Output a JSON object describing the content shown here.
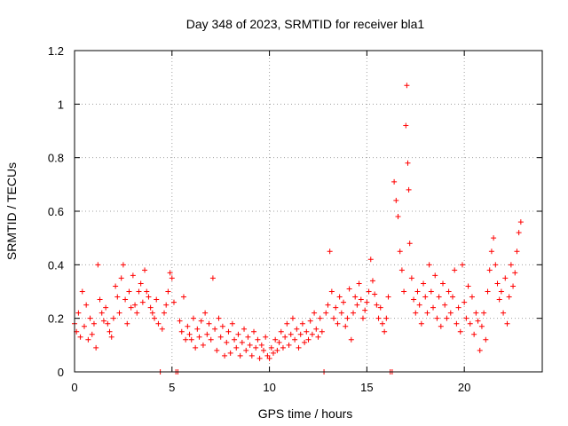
{
  "chart_data": {
    "type": "scatter",
    "title": "Day 348 of 2023, SRMTID for receiver bla1",
    "xlabel": "GPS time / hours",
    "ylabel": "SRMTID / TECUs",
    "xlim": [
      0,
      24
    ],
    "ylim": [
      0,
      1.2
    ],
    "x_ticks": [
      "0",
      "5",
      "10",
      "15",
      "20"
    ],
    "y_ticks": [
      "0",
      "0.2",
      "0.4",
      "0.6",
      "0.8",
      "1",
      "1.2"
    ],
    "grid": true,
    "marker": "plus",
    "color": "#ff0000",
    "series": [
      {
        "name": "SRMTID",
        "points": [
          [
            0.0,
            0.18
          ],
          [
            0.1,
            0.15
          ],
          [
            0.2,
            0.22
          ],
          [
            0.3,
            0.13
          ],
          [
            0.4,
            0.3
          ],
          [
            0.5,
            0.17
          ],
          [
            0.6,
            0.25
          ],
          [
            0.7,
            0.12
          ],
          [
            0.8,
            0.2
          ],
          [
            0.9,
            0.14
          ],
          [
            1.0,
            0.18
          ],
          [
            1.1,
            0.09
          ],
          [
            1.2,
            0.4
          ],
          [
            1.3,
            0.27
          ],
          [
            1.4,
            0.22
          ],
          [
            1.5,
            0.19
          ],
          [
            1.6,
            0.24
          ],
          [
            1.7,
            0.18
          ],
          [
            1.8,
            0.15
          ],
          [
            1.9,
            0.13
          ],
          [
            2.0,
            0.2
          ],
          [
            2.1,
            0.32
          ],
          [
            2.2,
            0.28
          ],
          [
            2.3,
            0.22
          ],
          [
            2.4,
            0.35
          ],
          [
            2.5,
            0.4
          ],
          [
            2.6,
            0.27
          ],
          [
            2.7,
            0.18
          ],
          [
            2.8,
            0.3
          ],
          [
            2.9,
            0.24
          ],
          [
            3.0,
            0.36
          ],
          [
            3.1,
            0.25
          ],
          [
            3.2,
            0.22
          ],
          [
            3.3,
            0.3
          ],
          [
            3.4,
            0.33
          ],
          [
            3.5,
            0.26
          ],
          [
            3.6,
            0.38
          ],
          [
            3.7,
            0.3
          ],
          [
            3.8,
            0.28
          ],
          [
            3.9,
            0.24
          ],
          [
            4.0,
            0.22
          ],
          [
            4.1,
            0.2
          ],
          [
            4.2,
            0.27
          ],
          [
            4.3,
            0.18
          ],
          [
            4.4,
            0.0
          ],
          [
            4.5,
            0.16
          ],
          [
            4.6,
            0.22
          ],
          [
            4.7,
            0.25
          ],
          [
            4.8,
            0.3
          ],
          [
            4.9,
            0.37
          ],
          [
            5.0,
            0.35
          ],
          [
            5.1,
            0.26
          ],
          [
            5.2,
            0.0
          ],
          [
            5.3,
            0.0
          ],
          [
            5.4,
            0.19
          ],
          [
            5.5,
            0.15
          ],
          [
            5.6,
            0.28
          ],
          [
            5.7,
            0.12
          ],
          [
            5.8,
            0.17
          ],
          [
            5.9,
            0.14
          ],
          [
            6.0,
            0.12
          ],
          [
            6.1,
            0.2
          ],
          [
            6.2,
            0.09
          ],
          [
            6.3,
            0.16
          ],
          [
            6.4,
            0.13
          ],
          [
            6.5,
            0.19
          ],
          [
            6.6,
            0.1
          ],
          [
            6.7,
            0.22
          ],
          [
            6.8,
            0.14
          ],
          [
            6.9,
            0.18
          ],
          [
            7.0,
            0.12
          ],
          [
            7.1,
            0.35
          ],
          [
            7.2,
            0.16
          ],
          [
            7.3,
            0.08
          ],
          [
            7.4,
            0.2
          ],
          [
            7.5,
            0.13
          ],
          [
            7.6,
            0.17
          ],
          [
            7.7,
            0.06
          ],
          [
            7.8,
            0.11
          ],
          [
            7.9,
            0.15
          ],
          [
            8.0,
            0.07
          ],
          [
            8.1,
            0.18
          ],
          [
            8.2,
            0.12
          ],
          [
            8.3,
            0.09
          ],
          [
            8.4,
            0.14
          ],
          [
            8.5,
            0.06
          ],
          [
            8.6,
            0.11
          ],
          [
            8.7,
            0.16
          ],
          [
            8.8,
            0.08
          ],
          [
            8.9,
            0.13
          ],
          [
            9.0,
            0.1
          ],
          [
            9.1,
            0.06
          ],
          [
            9.2,
            0.15
          ],
          [
            9.3,
            0.09
          ],
          [
            9.4,
            0.12
          ],
          [
            9.5,
            0.05
          ],
          [
            9.6,
            0.1
          ],
          [
            9.7,
            0.08
          ],
          [
            9.8,
            0.13
          ],
          [
            9.9,
            0.06
          ],
          [
            10.0,
            0.05
          ],
          [
            10.1,
            0.09
          ],
          [
            10.2,
            0.07
          ],
          [
            10.3,
            0.12
          ],
          [
            10.4,
            0.08
          ],
          [
            10.5,
            0.11
          ],
          [
            10.6,
            0.15
          ],
          [
            10.7,
            0.09
          ],
          [
            10.8,
            0.13
          ],
          [
            10.9,
            0.18
          ],
          [
            11.0,
            0.1
          ],
          [
            11.1,
            0.14
          ],
          [
            11.2,
            0.2
          ],
          [
            11.3,
            0.12
          ],
          [
            11.4,
            0.16
          ],
          [
            11.5,
            0.09
          ],
          [
            11.6,
            0.14
          ],
          [
            11.7,
            0.18
          ],
          [
            11.8,
            0.11
          ],
          [
            11.9,
            0.15
          ],
          [
            12.0,
            0.12
          ],
          [
            12.1,
            0.19
          ],
          [
            12.2,
            0.14
          ],
          [
            12.3,
            0.22
          ],
          [
            12.4,
            0.16
          ],
          [
            12.5,
            0.13
          ],
          [
            12.6,
            0.2
          ],
          [
            12.7,
            0.15
          ],
          [
            12.8,
            0.0
          ],
          [
            12.9,
            0.22
          ],
          [
            13.0,
            0.25
          ],
          [
            13.1,
            0.45
          ],
          [
            13.2,
            0.3
          ],
          [
            13.3,
            0.2
          ],
          [
            13.4,
            0.24
          ],
          [
            13.5,
            0.18
          ],
          [
            13.6,
            0.28
          ],
          [
            13.7,
            0.22
          ],
          [
            13.8,
            0.26
          ],
          [
            13.9,
            0.17
          ],
          [
            14.0,
            0.2
          ],
          [
            14.1,
            0.31
          ],
          [
            14.2,
            0.12
          ],
          [
            14.3,
            0.22
          ],
          [
            14.4,
            0.28
          ],
          [
            14.5,
            0.25
          ],
          [
            14.6,
            0.33
          ],
          [
            14.7,
            0.27
          ],
          [
            14.8,
            0.2
          ],
          [
            14.9,
            0.23
          ],
          [
            15.0,
            0.26
          ],
          [
            15.1,
            0.3
          ],
          [
            15.2,
            0.42
          ],
          [
            15.3,
            0.34
          ],
          [
            15.4,
            0.29
          ],
          [
            15.5,
            0.25
          ],
          [
            15.6,
            0.2
          ],
          [
            15.7,
            0.24
          ],
          [
            15.8,
            0.18
          ],
          [
            15.9,
            0.15
          ],
          [
            16.0,
            0.2
          ],
          [
            16.1,
            0.28
          ],
          [
            16.2,
            0.0
          ],
          [
            16.3,
            0.0
          ],
          [
            16.4,
            0.71
          ],
          [
            16.5,
            0.64
          ],
          [
            16.6,
            0.58
          ],
          [
            16.7,
            0.45
          ],
          [
            16.8,
            0.38
          ],
          [
            16.9,
            0.3
          ],
          [
            17.0,
            0.92
          ],
          [
            17.05,
            1.07
          ],
          [
            17.1,
            0.78
          ],
          [
            17.15,
            0.68
          ],
          [
            17.2,
            0.48
          ],
          [
            17.3,
            0.35
          ],
          [
            17.4,
            0.27
          ],
          [
            17.5,
            0.22
          ],
          [
            17.6,
            0.3
          ],
          [
            17.7,
            0.25
          ],
          [
            17.8,
            0.18
          ],
          [
            17.9,
            0.33
          ],
          [
            18.0,
            0.28
          ],
          [
            18.1,
            0.22
          ],
          [
            18.2,
            0.4
          ],
          [
            18.3,
            0.3
          ],
          [
            18.4,
            0.24
          ],
          [
            18.5,
            0.36
          ],
          [
            18.6,
            0.2
          ],
          [
            18.7,
            0.28
          ],
          [
            18.8,
            0.17
          ],
          [
            18.9,
            0.33
          ],
          [
            19.0,
            0.25
          ],
          [
            19.1,
            0.2
          ],
          [
            19.2,
            0.3
          ],
          [
            19.3,
            0.22
          ],
          [
            19.4,
            0.28
          ],
          [
            19.5,
            0.38
          ],
          [
            19.6,
            0.18
          ],
          [
            19.7,
            0.24
          ],
          [
            19.8,
            0.15
          ],
          [
            19.9,
            0.4
          ],
          [
            20.0,
            0.26
          ],
          [
            20.1,
            0.2
          ],
          [
            20.2,
            0.32
          ],
          [
            20.3,
            0.18
          ],
          [
            20.4,
            0.28
          ],
          [
            20.5,
            0.14
          ],
          [
            20.6,
            0.22
          ],
          [
            20.7,
            0.19
          ],
          [
            20.8,
            0.08
          ],
          [
            20.9,
            0.17
          ],
          [
            21.0,
            0.22
          ],
          [
            21.1,
            0.12
          ],
          [
            21.2,
            0.3
          ],
          [
            21.3,
            0.38
          ],
          [
            21.4,
            0.45
          ],
          [
            21.5,
            0.5
          ],
          [
            21.6,
            0.4
          ],
          [
            21.7,
            0.33
          ],
          [
            21.8,
            0.27
          ],
          [
            21.9,
            0.3
          ],
          [
            22.0,
            0.22
          ],
          [
            22.1,
            0.35
          ],
          [
            22.2,
            0.18
          ],
          [
            22.3,
            0.28
          ],
          [
            22.4,
            0.4
          ],
          [
            22.5,
            0.32
          ],
          [
            22.6,
            0.37
          ],
          [
            22.7,
            0.45
          ],
          [
            22.8,
            0.52
          ],
          [
            22.9,
            0.56
          ]
        ]
      }
    ]
  }
}
